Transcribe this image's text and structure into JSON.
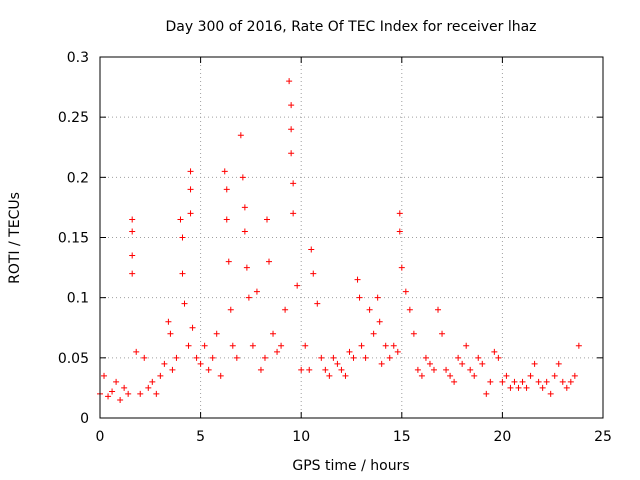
{
  "chart_data": {
    "type": "scatter",
    "title": "Day 300 of 2016, Rate Of TEC Index for receiver lhaz",
    "xlabel": "GPS time / hours",
    "ylabel": "ROTI / TECUs",
    "xlim": [
      0,
      25
    ],
    "ylim": [
      0,
      0.3
    ],
    "grid": true,
    "marker": "+",
    "color": "#ff0000",
    "x_ticks": [
      "0",
      "5",
      "10",
      "15",
      "20",
      "25"
    ],
    "y_ticks": [
      "0",
      "0.05",
      "0.1",
      "0.15",
      "0.2",
      "0.25",
      "0.3"
    ],
    "series": [
      {
        "name": "ROTI",
        "x": [
          0.0,
          0.2,
          0.4,
          0.6,
          0.8,
          1.0,
          1.2,
          1.4,
          1.6,
          1.6,
          1.6,
          1.6,
          1.8,
          2.0,
          2.2,
          2.4,
          2.6,
          2.8,
          3.0,
          3.2,
          3.4,
          3.5,
          3.6,
          3.8,
          4.0,
          4.1,
          4.1,
          4.2,
          4.4,
          4.5,
          4.5,
          4.5,
          4.6,
          4.8,
          5.0,
          5.2,
          5.4,
          5.6,
          5.8,
          6.0,
          6.2,
          6.3,
          6.3,
          6.4,
          6.5,
          6.6,
          6.8,
          7.0,
          7.1,
          7.2,
          7.2,
          7.3,
          7.4,
          7.6,
          7.8,
          8.0,
          8.2,
          8.3,
          8.4,
          8.6,
          8.8,
          9.0,
          9.2,
          9.4,
          9.5,
          9.5,
          9.5,
          9.6,
          9.6,
          9.8,
          10.0,
          10.2,
          10.4,
          10.5,
          10.6,
          10.8,
          11.0,
          11.2,
          11.4,
          11.6,
          11.8,
          12.0,
          12.2,
          12.4,
          12.6,
          12.8,
          12.9,
          13.0,
          13.2,
          13.4,
          13.6,
          13.8,
          13.9,
          14.0,
          14.2,
          14.4,
          14.6,
          14.8,
          14.9,
          14.9,
          15.0,
          15.2,
          15.4,
          15.6,
          15.8,
          16.0,
          16.2,
          16.4,
          16.6,
          16.8,
          17.0,
          17.2,
          17.4,
          17.6,
          17.8,
          18.0,
          18.2,
          18.4,
          18.6,
          18.8,
          19.0,
          19.2,
          19.4,
          19.6,
          19.8,
          20.0,
          20.2,
          20.4,
          20.6,
          20.8,
          21.0,
          21.2,
          21.4,
          21.6,
          21.8,
          22.0,
          22.2,
          22.4,
          22.6,
          22.8,
          23.0,
          23.2,
          23.4,
          23.6,
          23.8
        ],
        "y": [
          0.02,
          0.035,
          0.018,
          0.022,
          0.03,
          0.015,
          0.025,
          0.02,
          0.165,
          0.155,
          0.135,
          0.12,
          0.055,
          0.02,
          0.05,
          0.025,
          0.03,
          0.02,
          0.035,
          0.045,
          0.08,
          0.07,
          0.04,
          0.05,
          0.165,
          0.15,
          0.12,
          0.095,
          0.06,
          0.205,
          0.19,
          0.17,
          0.075,
          0.05,
          0.045,
          0.06,
          0.04,
          0.05,
          0.07,
          0.035,
          0.205,
          0.19,
          0.165,
          0.13,
          0.09,
          0.06,
          0.05,
          0.235,
          0.2,
          0.175,
          0.155,
          0.125,
          0.1,
          0.06,
          0.105,
          0.04,
          0.05,
          0.165,
          0.13,
          0.07,
          0.055,
          0.06,
          0.09,
          0.28,
          0.26,
          0.24,
          0.22,
          0.195,
          0.17,
          0.11,
          0.04,
          0.06,
          0.04,
          0.14,
          0.12,
          0.095,
          0.05,
          0.04,
          0.035,
          0.05,
          0.045,
          0.04,
          0.035,
          0.055,
          0.05,
          0.115,
          0.1,
          0.06,
          0.05,
          0.09,
          0.07,
          0.1,
          0.08,
          0.045,
          0.06,
          0.05,
          0.06,
          0.055,
          0.17,
          0.155,
          0.125,
          0.105,
          0.09,
          0.07,
          0.04,
          0.035,
          0.05,
          0.045,
          0.04,
          0.09,
          0.07,
          0.04,
          0.035,
          0.03,
          0.05,
          0.045,
          0.06,
          0.04,
          0.035,
          0.05,
          0.045,
          0.02,
          0.03,
          0.055,
          0.05,
          0.03,
          0.035,
          0.025,
          0.03,
          0.025,
          0.03,
          0.025,
          0.035,
          0.045,
          0.03,
          0.025,
          0.03,
          0.02,
          0.035,
          0.045,
          0.03,
          0.025,
          0.03,
          0.035,
          0.06
        ]
      }
    ]
  }
}
